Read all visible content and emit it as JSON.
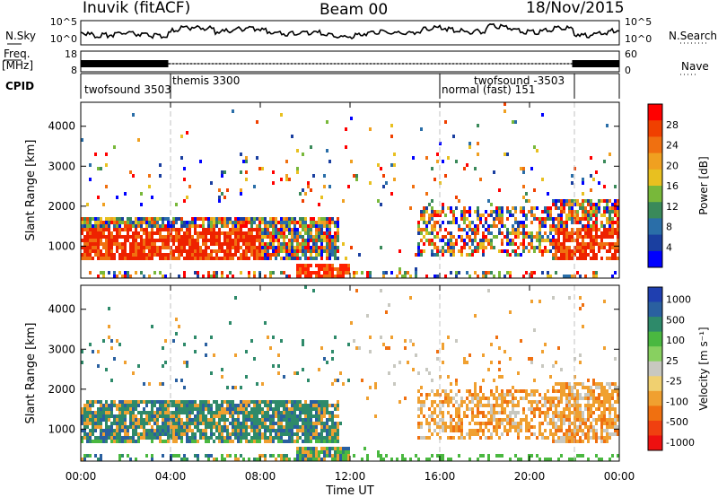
{
  "header": {
    "station": "Inuvik (fitACF)",
    "beam": "Beam 00",
    "date": "18/Nov/2015"
  },
  "left_labels": {
    "nsky": "N.Sky",
    "freq": "Freq.",
    "freq_unit": "[MHz]",
    "cpid": "CPID"
  },
  "right_labels": {
    "nsearch": "N.Search",
    "nave": "Nave"
  },
  "colors": {
    "trace": "#000000",
    "axis": "#000000",
    "dashed": "#c0c0c0"
  },
  "chart_data": [
    {
      "type": "line",
      "name": "noise-panel",
      "yticks_left": [
        "10^5",
        "10^0"
      ],
      "yticks_right": [
        "10^5",
        "10^0"
      ]
    },
    {
      "type": "line",
      "name": "frequency-panel",
      "yticks_left": [
        "18",
        "8"
      ],
      "yticks_right": [
        "60",
        "0"
      ]
    },
    {
      "type": "table",
      "name": "cpid-panel",
      "segments": [
        {
          "label": "twofsound 3503",
          "start": 0,
          "end": 4
        },
        {
          "label": "themis 3300",
          "start": 4,
          "end": 16
        },
        {
          "label": "normal (fast) 151",
          "start": 16,
          "end": 22
        },
        {
          "label": "twofsound -3503",
          "start": 22,
          "end": 24
        }
      ]
    },
    {
      "type": "heatmap",
      "name": "power",
      "ylabel": "Slant Range [km]",
      "yticks": [
        1000,
        2000,
        3000,
        4000
      ],
      "ylim": [
        200,
        4600
      ],
      "xlim": [
        0,
        24
      ],
      "colorbar_label": "Power [dB]",
      "colorbar_ticks": [
        4,
        8,
        12,
        16,
        20,
        24,
        28
      ],
      "colorbar_colors": [
        "#0000ff",
        "#1a3fa0",
        "#2a6ea8",
        "#3a8a5a",
        "#78b83a",
        "#e8c020",
        "#f0a020",
        "#f07010",
        "#f04000",
        "#ff0000"
      ]
    },
    {
      "type": "heatmap",
      "name": "velocity",
      "ylabel": "Slant Range [km]",
      "yticks": [
        1000,
        2000,
        3000,
        4000
      ],
      "ylim": [
        200,
        4600
      ],
      "xlim": [
        0,
        24
      ],
      "xlabel": "Time UT",
      "xtick_labels": [
        "00:00",
        "04:00",
        "08:00",
        "12:00",
        "16:00",
        "20:00",
        "00:00"
      ],
      "colorbar_label": "Velocity [m s⁻¹]",
      "colorbar_ticks": [
        "1000",
        "500",
        "100",
        "25",
        "-25",
        "-100",
        "-500",
        "-1000"
      ],
      "colorbar_colors": [
        "#1f3fb0",
        "#2a60a0",
        "#2e8a6a",
        "#4ab840",
        "#88d060",
        "#c8c8c0",
        "#f0d070",
        "#f0a030",
        "#f07010",
        "#f04010",
        "#ee1010"
      ]
    }
  ]
}
